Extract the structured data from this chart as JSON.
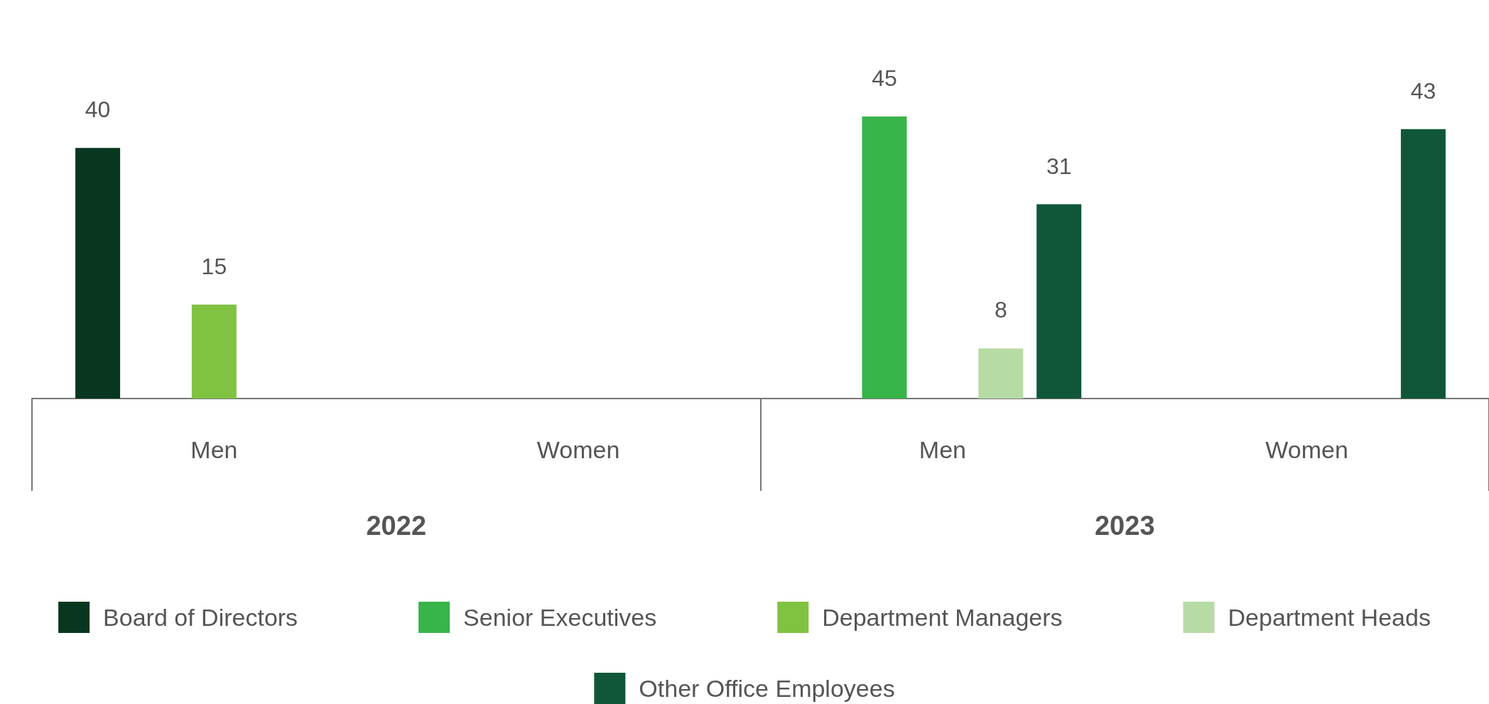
{
  "chart_data": {
    "type": "bar",
    "categories": [
      "Men",
      "Women",
      "Men",
      "Women"
    ],
    "series": [
      {
        "name": "Board of Directors",
        "color": "#08361f",
        "values": [
          40,
          null,
          null,
          null
        ]
      },
      {
        "name": "Senior Executives",
        "color": "#38b44a",
        "values": [
          null,
          null,
          45,
          null
        ]
      },
      {
        "name": "Department Managers",
        "color": "#80c241",
        "values": [
          15,
          null,
          null,
          null
        ]
      },
      {
        "name": "Department Heads",
        "color": "#b7dba5",
        "values": [
          null,
          null,
          8,
          null
        ]
      },
      {
        "name": "Other Office Employees",
        "color": "#0f5738",
        "values": [
          null,
          null,
          31,
          43
        ]
      }
    ],
    "annotations": [
      "2022",
      "2023"
    ],
    "data_labels": true,
    "legend": "bottom"
  }
}
